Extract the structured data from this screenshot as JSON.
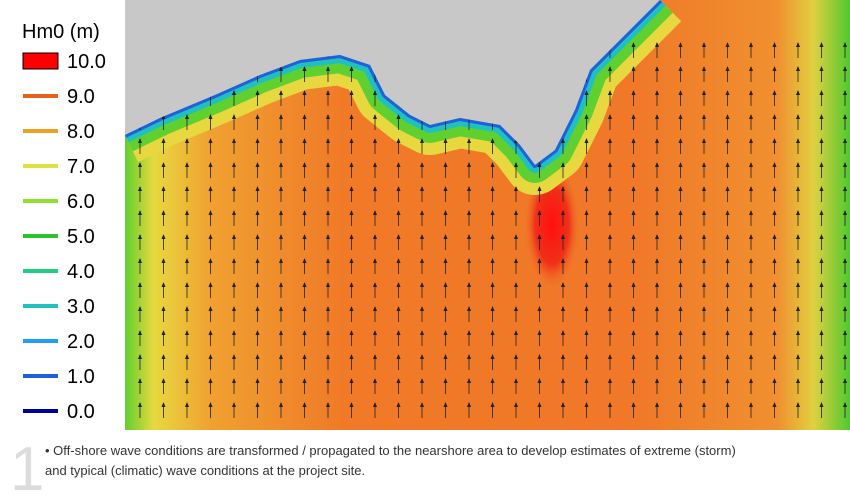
{
  "legend": {
    "title": "Hm0 (m)",
    "items": [
      {
        "label": "10.0",
        "color": "#ff0000",
        "kind": "box"
      },
      {
        "label": "9.0",
        "color": "#e8601c",
        "kind": "line"
      },
      {
        "label": "8.0",
        "color": "#f0a020",
        "kind": "line"
      },
      {
        "label": "7.0",
        "color": "#e0e040",
        "kind": "line"
      },
      {
        "label": "6.0",
        "color": "#90e030",
        "kind": "line"
      },
      {
        "label": "5.0",
        "color": "#30c030",
        "kind": "line"
      },
      {
        "label": "4.0",
        "color": "#20d080",
        "kind": "line"
      },
      {
        "label": "3.0",
        "color": "#20c0c0",
        "kind": "line"
      },
      {
        "label": "2.0",
        "color": "#20a0f0",
        "kind": "line"
      },
      {
        "label": "1.0",
        "color": "#2060e0",
        "kind": "line"
      },
      {
        "label": "0.0",
        "color": "#0000a0",
        "kind": "line"
      }
    ]
  },
  "caption": {
    "number": "1",
    "lines": [
      "• Off-shore wave conditions are transformed / propagated to the nearshore area to develop estimates of extreme (storm)",
      "and typical (climatic) wave conditions at the project site."
    ]
  }
}
